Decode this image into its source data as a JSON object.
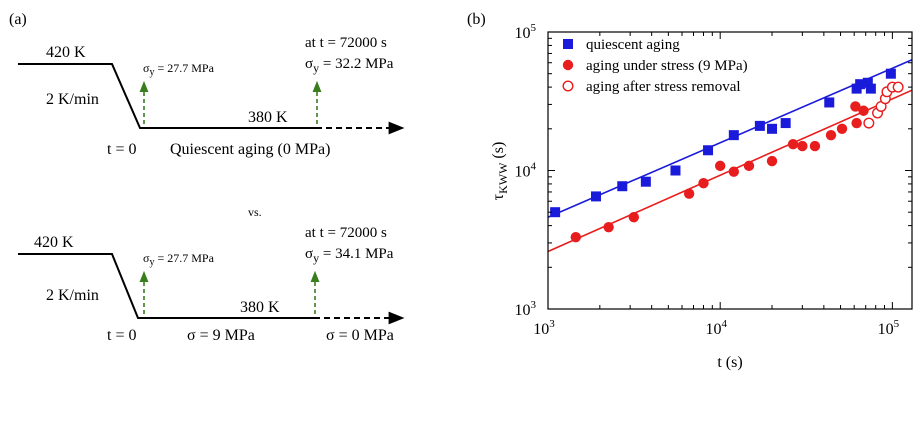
{
  "panel_a": {
    "label": "(a)",
    "top": {
      "start_temp": "420 K",
      "rate": "2 K/min",
      "sigma_initial": "27.7 MPa",
      "at_time": "at t = 72000 s",
      "sigma_final": "32.2 MPa",
      "hold_temp": "380 K",
      "t0": "t = 0",
      "caption": "Quiescent aging (0 MPa)"
    },
    "vs": "vs.",
    "bottom": {
      "start_temp": "420 K",
      "rate": "2 K/min",
      "sigma_initial": "27.7 MPa",
      "at_time": "at t = 72000 s",
      "sigma_final": "34.1 MPa",
      "hold_temp": "380 K",
      "t0": "t = 0",
      "stress_on": "σ = 9 MPa",
      "stress_off": "σ = 0 MPa"
    },
    "colors": {
      "arrow_green": "#3a7d1e"
    }
  },
  "chart_data": {
    "label": "(b)",
    "type": "scatter",
    "xscale": "log",
    "yscale": "log",
    "xlim": [
      1000,
      130000
    ],
    "ylim": [
      1000,
      100000
    ],
    "xlabel": "t (s)",
    "ylabel_main": "τ",
    "ylabel_sub": "KWW",
    "ylabel_unit": " (s)",
    "x_ticks": [
      {
        "value": 1000,
        "base": "10",
        "exp": "3"
      },
      {
        "value": 10000,
        "base": "10",
        "exp": "4"
      },
      {
        "value": 100000,
        "base": "10",
        "exp": "5"
      }
    ],
    "y_ticks": [
      {
        "value": 1000,
        "base": "10",
        "exp": "3"
      },
      {
        "value": 10000,
        "base": "10",
        "exp": "4"
      },
      {
        "value": 100000,
        "base": "10",
        "exp": "5"
      }
    ],
    "legend_position": "top-left",
    "series": [
      {
        "name": "quiescent aging",
        "marker": "square-filled",
        "color": "#1a1adb",
        "x": [
          1100,
          1900,
          2700,
          3700,
          5500,
          8500,
          12000,
          17000,
          20000,
          24000,
          43000,
          62000,
          65000,
          72000,
          75000,
          98000
        ],
        "y": [
          5000,
          6500,
          7700,
          8300,
          10000,
          14000,
          18000,
          21000,
          20000,
          22000,
          31000,
          39000,
          42000,
          43000,
          39000,
          50000
        ],
        "fit": {
          "x": [
            1000,
            130000
          ],
          "y": [
            4600,
            63000
          ]
        }
      },
      {
        "name": "aging under stress (9 MPa)",
        "marker": "circle-filled",
        "color": "#e81d1d",
        "x": [
          1450,
          2250,
          3150,
          6600,
          8000,
          10000,
          12000,
          14700,
          20000,
          26500,
          30000,
          35500,
          44000,
          51000,
          61000,
          62000,
          68000
        ],
        "y": [
          3300,
          3900,
          4600,
          6800,
          8100,
          10800,
          9800,
          10800,
          11700,
          15500,
          15000,
          15000,
          18000,
          20000,
          29000,
          22000,
          27000
        ],
        "fit": {
          "x": [
            1000,
            130000
          ],
          "y": [
            2600,
            38000
          ]
        }
      },
      {
        "name": "aging after stress removal",
        "marker": "circle-open",
        "color": "#e81d1d",
        "x": [
          73000,
          82000,
          86000,
          91000,
          93000,
          100000,
          108000
        ],
        "y": [
          22000,
          26000,
          29000,
          33000,
          37000,
          40000,
          40000
        ]
      }
    ]
  }
}
